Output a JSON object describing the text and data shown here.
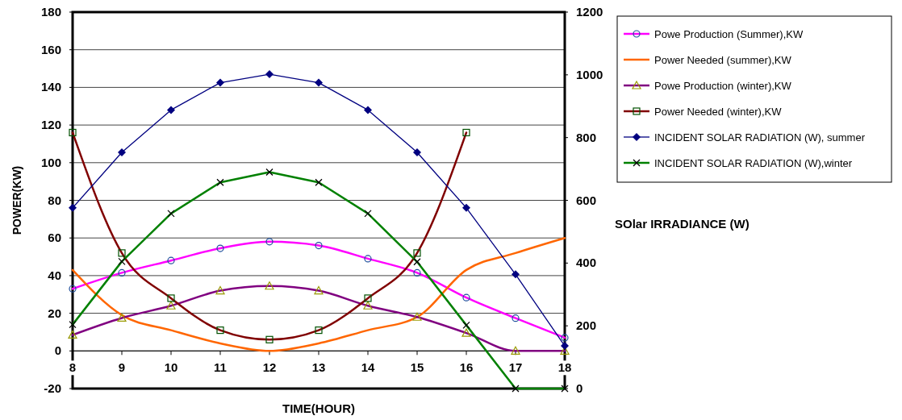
{
  "chart_data": {
    "type": "line",
    "xlabel": "TIME(HOUR)",
    "ylabel": "POWER(KW)",
    "y2label": "SOlar IRRADIANCE (W)",
    "x": [
      8,
      9,
      10,
      11,
      12,
      13,
      14,
      15,
      16,
      17,
      18
    ],
    "xlim": [
      8,
      18
    ],
    "xticks": [
      8,
      9,
      10,
      11,
      12,
      13,
      14,
      15,
      16,
      17,
      18
    ],
    "ylim": [
      -20,
      180
    ],
    "yticks": [
      -20,
      0,
      20,
      40,
      60,
      80,
      100,
      120,
      140,
      160,
      180
    ],
    "y2lim": [
      0,
      1200
    ],
    "y2ticks": [
      0,
      200,
      400,
      600,
      800,
      1000,
      1200
    ],
    "grid": "y",
    "legend": "right",
    "series": [
      {
        "name": "Powe Production (Summer),KW",
        "color": "#ff00ff",
        "marker": "circle",
        "values": [
          33,
          41.5,
          48,
          54.5,
          58,
          56,
          49,
          41.5,
          28.3,
          17.4,
          7
        ]
      },
      {
        "name": "Power Needed (summer),KW",
        "color": "#ff6600",
        "marker": "none",
        "values": [
          43,
          19,
          11,
          4,
          0,
          4,
          11,
          18,
          43,
          52,
          60
        ]
      },
      {
        "name": "Powe Production (winter),KW",
        "color": "#800080",
        "marker": "triangle",
        "values": [
          8.5,
          17.5,
          24,
          32,
          34.5,
          32,
          24,
          18,
          9.5,
          0,
          0
        ]
      },
      {
        "name": "Power Needed (winter),KW",
        "color": "#800000",
        "marker": "square",
        "values": [
          116,
          52,
          28,
          11,
          6,
          11,
          28,
          52,
          116,
          null,
          null
        ]
      },
      {
        "name": "INCIDENT SOLAR RADIATION (W), summer",
        "color": "#000080",
        "marker": "diamond",
        "axis": "y2",
        "values": [
          576,
          753,
          888,
          975,
          1002,
          975,
          888,
          753,
          576,
          364,
          136
        ]
      },
      {
        "name": "INCIDENT SOLAR RADIATION (W),winter",
        "color": "#008000",
        "marker": "cross",
        "axis": "y2",
        "values": [
          204,
          405,
          558,
          657,
          690,
          657,
          558,
          404,
          202,
          0,
          0
        ]
      }
    ]
  }
}
